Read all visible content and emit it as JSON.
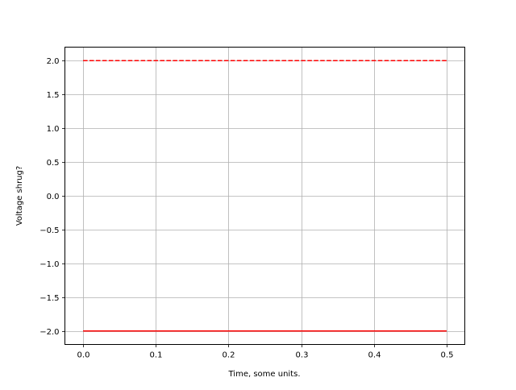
{
  "chart_data": {
    "type": "line",
    "title": "",
    "xlabel": "Time, some units.",
    "ylabel": "Voltage shrug?",
    "xlim": [
      -0.025,
      0.525
    ],
    "ylim": [
      -2.2,
      2.2
    ],
    "xticks": [
      0.0,
      0.1,
      0.2,
      0.3,
      0.4,
      0.5
    ],
    "xtick_labels": [
      "0.0",
      "0.1",
      "0.2",
      "0.3",
      "0.4",
      "0.5"
    ],
    "yticks": [
      -2.0,
      -1.5,
      -1.0,
      -0.5,
      0.0,
      0.5,
      1.0,
      1.5,
      2.0
    ],
    "ytick_labels": [
      "−2.0",
      "−1.5",
      "−1.0",
      "−0.5",
      "0.0",
      "0.5",
      "1.0",
      "1.5",
      "2.0"
    ],
    "grid": true,
    "series": [
      {
        "x": [
          0.0,
          0.5
        ],
        "y": [
          2.0,
          2.0
        ],
        "color": "#ff0000",
        "linestyle": "dashed"
      },
      {
        "x": [
          0.0,
          0.5
        ],
        "y": [
          -2.0,
          -2.0
        ],
        "color": "#ff0000",
        "linestyle": "solid"
      }
    ]
  }
}
